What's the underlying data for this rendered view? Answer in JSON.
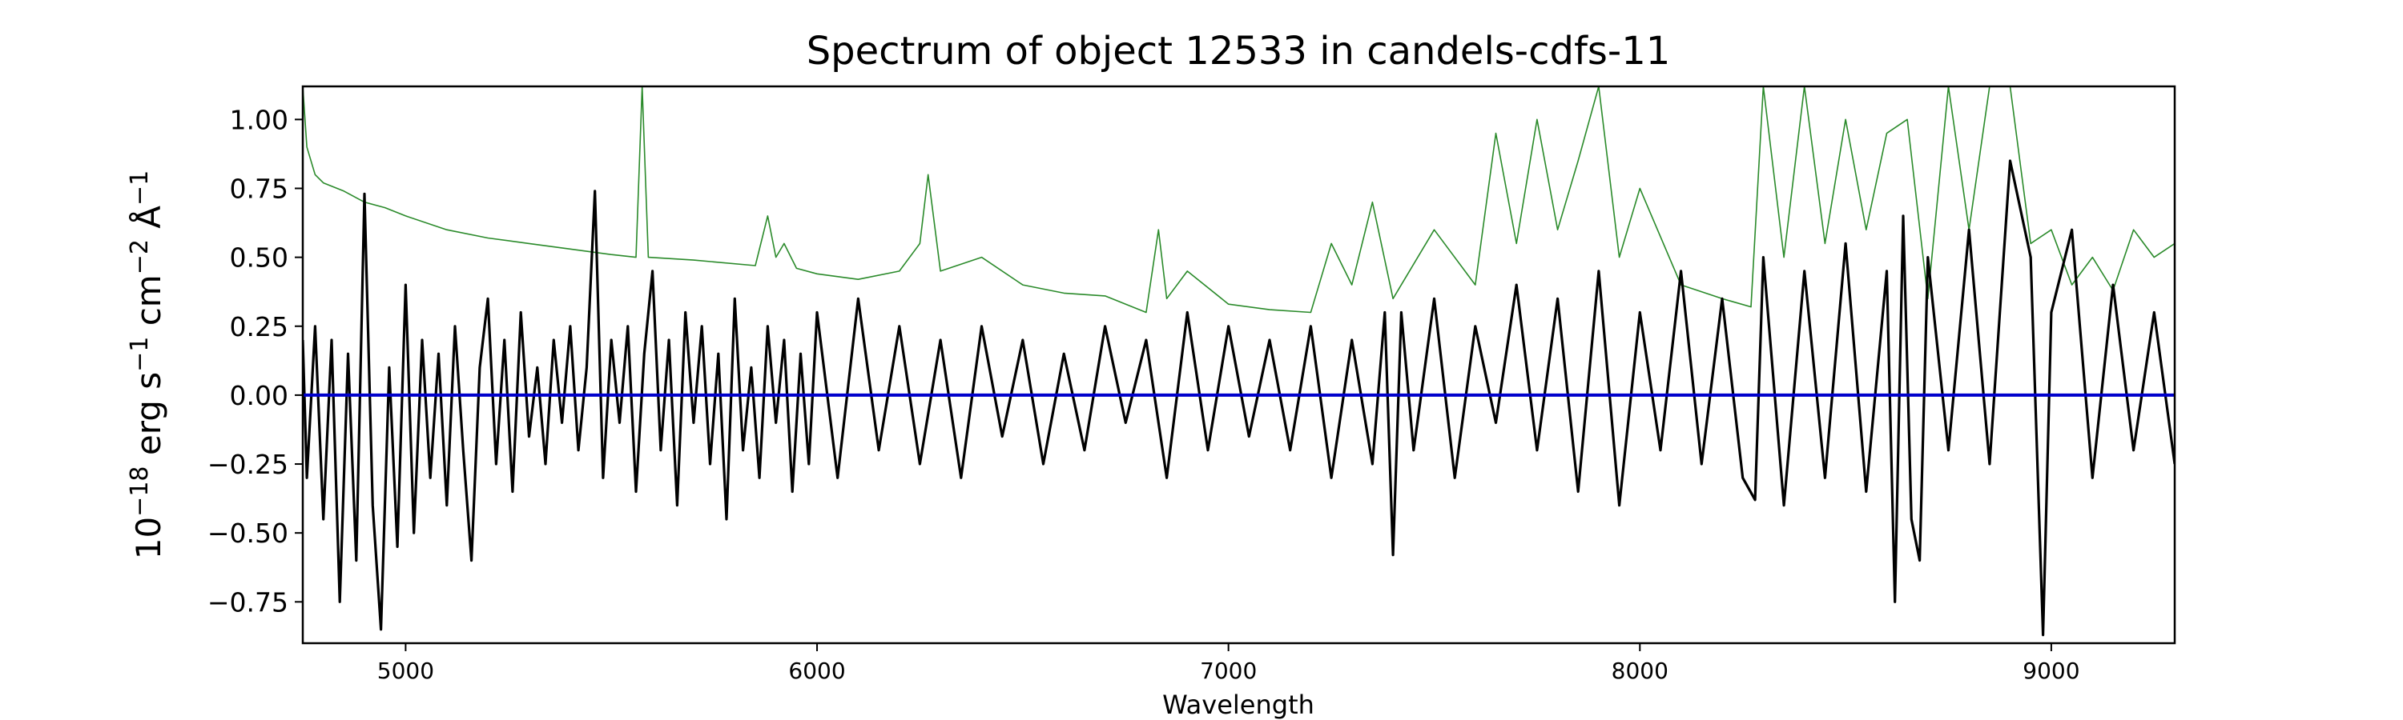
{
  "chart_data": {
    "type": "line",
    "title": "Spectrum of object 12533 in candels-cdfs-11",
    "xlabel": "Wavelength",
    "ylabel_parts": {
      "base": "10",
      "base_exp": "−18",
      "erg": " erg s",
      "s_exp": "−1",
      "cm": " cm",
      "cm_exp": "−2",
      "angstrom": " Å",
      "a_exp": "−1"
    },
    "xlim": [
      4750,
      9300
    ],
    "ylim": [
      -0.9,
      1.12
    ],
    "xticks": [
      5000,
      6000,
      7000,
      8000,
      9000
    ],
    "xtick_labels": [
      "5000",
      "6000",
      "7000",
      "8000",
      "9000"
    ],
    "yticks": [
      -0.75,
      -0.5,
      -0.25,
      0.0,
      0.25,
      0.5,
      0.75,
      1.0
    ],
    "ytick_labels": [
      "−0.75",
      "−0.50",
      "−0.25",
      "0.00",
      "0.25",
      "0.50",
      "0.75",
      "1.00"
    ],
    "grid": false,
    "series": [
      {
        "role": "error",
        "color": "#2a8a2a",
        "x": [
          4750,
          4760,
          4780,
          4800,
          4850,
          4900,
          4950,
          5000,
          5100,
          5200,
          5300,
          5400,
          5500,
          5560,
          5575,
          5590,
          5700,
          5850,
          5880,
          5900,
          5920,
          5950,
          6000,
          6100,
          6200,
          6250,
          6270,
          6300,
          6400,
          6500,
          6600,
          6700,
          6800,
          6830,
          6850,
          6900,
          7000,
          7100,
          7200,
          7250,
          7300,
          7350,
          7400,
          7500,
          7600,
          7650,
          7700,
          7750,
          7800,
          7850,
          7900,
          7950,
          8000,
          8100,
          8200,
          8270,
          8300,
          8350,
          8400,
          8450,
          8500,
          8550,
          8600,
          8650,
          8700,
          8750,
          8800,
          8850,
          8900,
          8950,
          9000,
          9050,
          9100,
          9150,
          9200,
          9250,
          9300
        ],
        "y": [
          1.12,
          0.9,
          0.8,
          0.77,
          0.74,
          0.7,
          0.68,
          0.65,
          0.6,
          0.57,
          0.55,
          0.53,
          0.51,
          0.5,
          1.12,
          0.5,
          0.49,
          0.47,
          0.65,
          0.5,
          0.55,
          0.46,
          0.44,
          0.42,
          0.45,
          0.55,
          0.8,
          0.45,
          0.5,
          0.4,
          0.37,
          0.36,
          0.3,
          0.6,
          0.35,
          0.45,
          0.33,
          0.31,
          0.3,
          0.55,
          0.4,
          0.7,
          0.35,
          0.6,
          0.4,
          0.95,
          0.55,
          1.0,
          0.6,
          0.85,
          1.12,
          0.5,
          0.75,
          0.4,
          0.35,
          0.32,
          1.12,
          0.5,
          1.12,
          0.55,
          1.0,
          0.6,
          0.95,
          1.0,
          0.35,
          1.12,
          0.6,
          1.12,
          1.12,
          0.55,
          0.6,
          0.4,
          0.5,
          0.38,
          0.6,
          0.5,
          0.55
        ]
      },
      {
        "role": "flux",
        "color": "#000000",
        "x": [
          4750,
          4760,
          4780,
          4800,
          4820,
          4840,
          4860,
          4880,
          4900,
          4920,
          4940,
          4960,
          4980,
          5000,
          5020,
          5040,
          5060,
          5080,
          5100,
          5120,
          5140,
          5160,
          5180,
          5200,
          5220,
          5240,
          5260,
          5280,
          5300,
          5320,
          5340,
          5360,
          5380,
          5400,
          5420,
          5440,
          5460,
          5480,
          5500,
          5520,
          5540,
          5560,
          5580,
          5600,
          5620,
          5640,
          5660,
          5680,
          5700,
          5720,
          5740,
          5760,
          5780,
          5800,
          5820,
          5840,
          5860,
          5880,
          5900,
          5920,
          5940,
          5960,
          5980,
          6000,
          6050,
          6100,
          6150,
          6200,
          6250,
          6300,
          6350,
          6400,
          6450,
          6500,
          6550,
          6600,
          6650,
          6700,
          6750,
          6800,
          6850,
          6900,
          6950,
          7000,
          7050,
          7100,
          7150,
          7200,
          7250,
          7300,
          7350,
          7380,
          7400,
          7420,
          7450,
          7500,
          7550,
          7600,
          7650,
          7700,
          7750,
          7800,
          7850,
          7900,
          7950,
          8000,
          8050,
          8100,
          8150,
          8200,
          8250,
          8280,
          8300,
          8350,
          8400,
          8450,
          8500,
          8550,
          8600,
          8620,
          8640,
          8660,
          8680,
          8700,
          8750,
          8800,
          8850,
          8900,
          8950,
          8980,
          9000,
          9050,
          9100,
          9150,
          9200,
          9250,
          9300
        ],
        "y": [
          0.2,
          -0.3,
          0.25,
          -0.45,
          0.2,
          -0.75,
          0.15,
          -0.6,
          0.73,
          -0.4,
          -0.85,
          0.1,
          -0.55,
          0.4,
          -0.5,
          0.2,
          -0.3,
          0.15,
          -0.4,
          0.25,
          -0.2,
          -0.6,
          0.1,
          0.35,
          -0.25,
          0.2,
          -0.35,
          0.3,
          -0.15,
          0.1,
          -0.25,
          0.2,
          -0.1,
          0.25,
          -0.2,
          0.1,
          0.74,
          -0.3,
          0.2,
          -0.1,
          0.25,
          -0.35,
          0.15,
          0.45,
          -0.2,
          0.2,
          -0.4,
          0.3,
          -0.1,
          0.25,
          -0.25,
          0.15,
          -0.45,
          0.35,
          -0.2,
          0.1,
          -0.3,
          0.25,
          -0.1,
          0.2,
          -0.35,
          0.15,
          -0.25,
          0.3,
          -0.3,
          0.35,
          -0.2,
          0.25,
          -0.25,
          0.2,
          -0.3,
          0.25,
          -0.15,
          0.2,
          -0.25,
          0.15,
          -0.2,
          0.25,
          -0.1,
          0.2,
          -0.3,
          0.3,
          -0.2,
          0.25,
          -0.15,
          0.2,
          -0.2,
          0.25,
          -0.3,
          0.2,
          -0.25,
          0.3,
          -0.58,
          0.3,
          -0.2,
          0.35,
          -0.3,
          0.25,
          -0.1,
          0.4,
          -0.2,
          0.35,
          -0.35,
          0.45,
          -0.4,
          0.3,
          -0.2,
          0.45,
          -0.25,
          0.35,
          -0.3,
          -0.38,
          0.5,
          -0.4,
          0.45,
          -0.3,
          0.55,
          -0.35,
          0.45,
          -0.75,
          0.65,
          -0.45,
          -0.6,
          0.5,
          -0.2,
          0.6,
          -0.25,
          0.85,
          0.5,
          -0.87,
          0.3,
          0.6,
          -0.3,
          0.4,
          -0.2,
          0.3,
          -0.25
        ]
      },
      {
        "role": "zero",
        "color": "#0000cc",
        "x": [
          4750,
          9300
        ],
        "y": [
          0.0,
          0.0
        ]
      }
    ]
  }
}
